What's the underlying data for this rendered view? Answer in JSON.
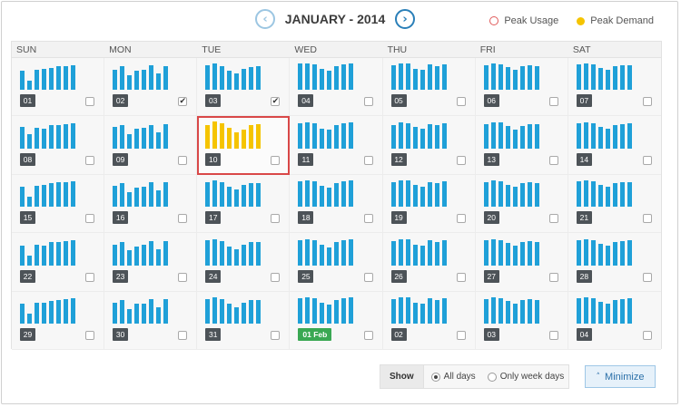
{
  "header": {
    "title": "JANUARY - 2014",
    "prev_icon": "chevron-left-icon",
    "next_icon": "chevron-right-icon",
    "prev_glyph": "‹",
    "next_glyph": "›"
  },
  "legend": {
    "peak_usage": "Peak Usage",
    "peak_demand": "Peak Demand",
    "usage_color": "#e05a5a",
    "demand_color": "#f5c400"
  },
  "weekdays": [
    "SUN",
    "MON",
    "TUE",
    "WED",
    "THU",
    "FRI",
    "SAT"
  ],
  "colors": {
    "bar": "#1fa0d8",
    "peak_bar": "#f5c400",
    "selected_border": "#d94848",
    "next_month_badge": "#3aa853"
  },
  "days": [
    {
      "label": "01",
      "checked": false,
      "bars": [
        0.65,
        0.3,
        0.7,
        0.72,
        0.75,
        0.8,
        0.82,
        0.85
      ]
    },
    {
      "label": "02",
      "checked": true,
      "bars": [
        0.7,
        0.8,
        0.5,
        0.65,
        0.7,
        0.85,
        0.55,
        0.82
      ]
    },
    {
      "label": "03",
      "checked": true,
      "bars": [
        0.85,
        0.9,
        0.82,
        0.65,
        0.55,
        0.72,
        0.78,
        0.8
      ]
    },
    {
      "label": "04",
      "checked": false,
      "bars": [
        0.9,
        0.92,
        0.88,
        0.72,
        0.65,
        0.8,
        0.86,
        0.9
      ]
    },
    {
      "label": "05",
      "checked": false,
      "bars": [
        0.85,
        0.9,
        0.9,
        0.72,
        0.7,
        0.86,
        0.82,
        0.88
      ]
    },
    {
      "label": "06",
      "checked": false,
      "bars": [
        0.85,
        0.92,
        0.88,
        0.78,
        0.68,
        0.8,
        0.84,
        0.82
      ]
    },
    {
      "label": "07",
      "checked": false,
      "bars": [
        0.88,
        0.92,
        0.86,
        0.74,
        0.68,
        0.82,
        0.84,
        0.84
      ]
    },
    {
      "label": "08",
      "checked": false,
      "bars": [
        0.75,
        0.5,
        0.72,
        0.68,
        0.8,
        0.82,
        0.85,
        0.88
      ]
    },
    {
      "label": "09",
      "checked": false,
      "bars": [
        0.75,
        0.8,
        0.5,
        0.7,
        0.72,
        0.8,
        0.55,
        0.85
      ]
    },
    {
      "label": "10",
      "checked": false,
      "selected": true,
      "peak": true,
      "bars": [
        0.8,
        0.95,
        0.88,
        0.72,
        0.55,
        0.65,
        0.82,
        0.85
      ]
    },
    {
      "label": "11",
      "checked": false,
      "bars": [
        0.88,
        0.92,
        0.86,
        0.7,
        0.65,
        0.82,
        0.86,
        0.9
      ]
    },
    {
      "label": "12",
      "checked": false,
      "bars": [
        0.82,
        0.9,
        0.88,
        0.74,
        0.7,
        0.84,
        0.82,
        0.86
      ]
    },
    {
      "label": "13",
      "checked": false,
      "bars": [
        0.85,
        0.92,
        0.9,
        0.78,
        0.66,
        0.78,
        0.85,
        0.84
      ]
    },
    {
      "label": "14",
      "checked": false,
      "bars": [
        0.86,
        0.9,
        0.88,
        0.76,
        0.7,
        0.82,
        0.84,
        0.86
      ]
    },
    {
      "label": "15",
      "checked": false,
      "bars": [
        0.7,
        0.35,
        0.72,
        0.75,
        0.8,
        0.85,
        0.85,
        0.88
      ]
    },
    {
      "label": "16",
      "checked": false,
      "bars": [
        0.72,
        0.82,
        0.5,
        0.65,
        0.7,
        0.85,
        0.55,
        0.84
      ]
    },
    {
      "label": "17",
      "checked": false,
      "bars": [
        0.85,
        0.9,
        0.84,
        0.68,
        0.58,
        0.74,
        0.8,
        0.82
      ]
    },
    {
      "label": "18",
      "checked": false,
      "bars": [
        0.88,
        0.92,
        0.88,
        0.72,
        0.66,
        0.82,
        0.86,
        0.9
      ]
    },
    {
      "label": "19",
      "checked": false,
      "bars": [
        0.84,
        0.9,
        0.9,
        0.74,
        0.7,
        0.84,
        0.82,
        0.88
      ]
    },
    {
      "label": "20",
      "checked": false,
      "bars": [
        0.84,
        0.92,
        0.88,
        0.76,
        0.68,
        0.8,
        0.84,
        0.82
      ]
    },
    {
      "label": "21",
      "checked": false,
      "bars": [
        0.88,
        0.9,
        0.86,
        0.76,
        0.68,
        0.82,
        0.84,
        0.84
      ]
    },
    {
      "label": "22",
      "checked": false,
      "bars": [
        0.68,
        0.35,
        0.72,
        0.7,
        0.8,
        0.82,
        0.85,
        0.86
      ]
    },
    {
      "label": "23",
      "checked": false,
      "bars": [
        0.72,
        0.8,
        0.52,
        0.66,
        0.72,
        0.85,
        0.55,
        0.84
      ]
    },
    {
      "label": "24",
      "checked": false,
      "bars": [
        0.86,
        0.92,
        0.84,
        0.66,
        0.56,
        0.72,
        0.8,
        0.82
      ]
    },
    {
      "label": "25",
      "checked": false,
      "bars": [
        0.88,
        0.92,
        0.88,
        0.72,
        0.64,
        0.82,
        0.86,
        0.9
      ]
    },
    {
      "label": "26",
      "checked": false,
      "bars": [
        0.84,
        0.9,
        0.9,
        0.72,
        0.7,
        0.86,
        0.82,
        0.88
      ]
    },
    {
      "label": "27",
      "checked": false,
      "bars": [
        0.86,
        0.92,
        0.88,
        0.78,
        0.68,
        0.8,
        0.84,
        0.82
      ]
    },
    {
      "label": "28",
      "checked": false,
      "bars": [
        0.88,
        0.9,
        0.86,
        0.74,
        0.68,
        0.82,
        0.84,
        0.86
      ]
    },
    {
      "label": "29",
      "checked": false,
      "bars": [
        0.7,
        0.35,
        0.72,
        0.72,
        0.78,
        0.82,
        0.85,
        0.88
      ]
    },
    {
      "label": "30",
      "checked": false,
      "bars": [
        0.72,
        0.8,
        0.5,
        0.68,
        0.7,
        0.85,
        0.55,
        0.84
      ]
    },
    {
      "label": "31",
      "checked": false,
      "bars": [
        0.85,
        0.9,
        0.84,
        0.68,
        0.56,
        0.72,
        0.8,
        0.82
      ]
    },
    {
      "label": "01 Feb",
      "checked": false,
      "next_month": true,
      "bars": [
        0.88,
        0.92,
        0.86,
        0.72,
        0.66,
        0.82,
        0.86,
        0.9
      ]
    },
    {
      "label": "02",
      "checked": false,
      "bars": [
        0.84,
        0.9,
        0.9,
        0.72,
        0.7,
        0.86,
        0.82,
        0.88
      ]
    },
    {
      "label": "03",
      "checked": false,
      "bars": [
        0.84,
        0.92,
        0.88,
        0.78,
        0.68,
        0.8,
        0.84,
        0.82
      ]
    },
    {
      "label": "04",
      "checked": false,
      "bars": [
        0.88,
        0.9,
        0.86,
        0.74,
        0.68,
        0.82,
        0.84,
        0.86
      ]
    }
  ],
  "controls": {
    "show_label": "Show",
    "options": [
      {
        "label": "All days",
        "selected": true
      },
      {
        "label": "Only week days",
        "selected": false
      }
    ],
    "minimize_label": "Minimize",
    "minimize_icon": "caret-up-icon",
    "minimize_glyph": "˄"
  },
  "check_glyph": "✔"
}
